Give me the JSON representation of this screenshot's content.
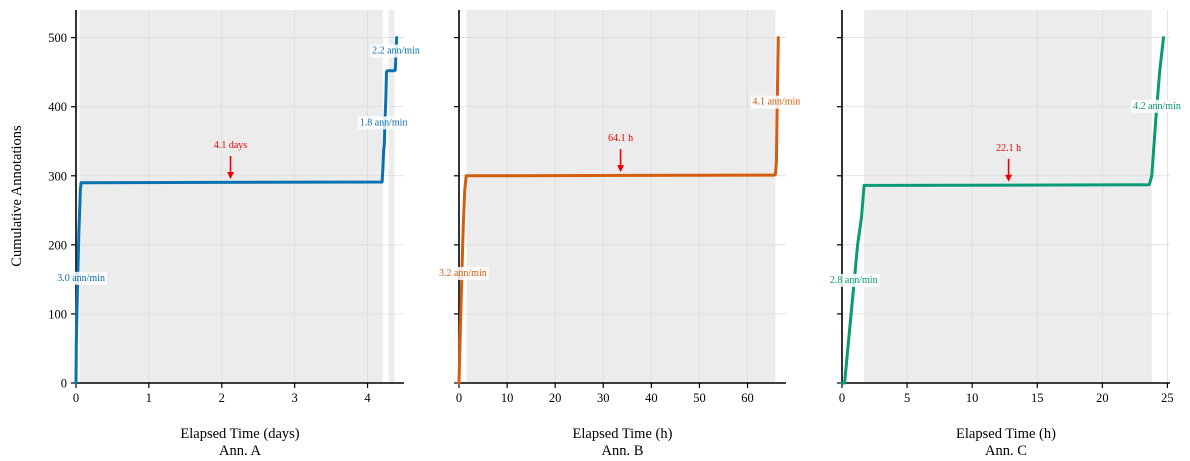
{
  "colors": {
    "gap_shade": "#ececec",
    "grid": "#d9d9d9",
    "arrow": "#ee0000"
  },
  "chart_data": {
    "type": "line",
    "ylabel": "Cumulative Annotations",
    "ylim": [
      0,
      540
    ],
    "yticks": [
      0,
      100,
      200,
      300,
      400,
      500
    ],
    "grid": true,
    "panels": [
      {
        "name": "Ann. A",
        "xlabel": "Elapsed Time (days)",
        "color": "#0a72b0",
        "xlim": [
          0,
          4.5
        ],
        "xticks": [
          0,
          1,
          2,
          3,
          4
        ],
        "shaded_ranges": [
          [
            0.05,
            4.21
          ],
          [
            4.29,
            4.37
          ]
        ],
        "x": [
          0,
          0.004,
          0.02,
          0.04,
          0.06,
          0.07,
          4.18,
          4.2,
          4.21,
          4.22,
          4.23,
          4.24,
          4.25,
          4.26,
          4.27,
          4.29,
          4.3,
          4.33,
          4.36,
          4.38,
          4.39,
          4.4
        ],
        "y": [
          0,
          60,
          140,
          220,
          280,
          290,
          291,
          291,
          310,
          336,
          345,
          380,
          410,
          450,
          452,
          452,
          452,
          452,
          452,
          453,
          480,
          500
        ],
        "annotations": [
          {
            "text": "3.0 ann/min",
            "x": 0.07,
            "y": 153
          },
          {
            "text": "1.8 ann/min",
            "x": 4.22,
            "y": 378
          },
          {
            "text": "2.2 ann/min",
            "x": 4.39,
            "y": 482
          }
        ],
        "gap": {
          "text": "4.1 days",
          "x": 2.12,
          "y": 291
        }
      },
      {
        "name": "Ann. B",
        "xlabel": "Elapsed Time (h)",
        "color": "#d55e0e",
        "xlim": [
          0,
          68
        ],
        "xticks": [
          0,
          10,
          20,
          30,
          40,
          50,
          60
        ],
        "shaded_ranges": [
          [
            1.6,
            65.8
          ]
        ],
        "x": [
          0,
          0.3,
          0.6,
          0.9,
          1.2,
          1.5,
          65.6,
          65.8,
          66.0,
          66.2,
          66.4
        ],
        "y": [
          0,
          80,
          160,
          230,
          280,
          300,
          301,
          302,
          320,
          410,
          500
        ],
        "annotations": [
          {
            "text": "3.2 ann/min",
            "x": 0.8,
            "y": 160
          },
          {
            "text": "4.1 ann/min",
            "x": 66.0,
            "y": 408
          }
        ],
        "gap": {
          "text": "64.1 h",
          "x": 33.6,
          "y": 301
        }
      },
      {
        "name": "Ann. C",
        "xlabel": "Elapsed Time (h)",
        "color": "#0a9a74",
        "xlim": [
          0,
          25.2
        ],
        "xticks": [
          0,
          5,
          10,
          15,
          20,
          25
        ],
        "shaded_ranges": [
          [
            1.7,
            23.8
          ]
        ],
        "x": [
          0,
          0.2,
          0.4,
          0.6,
          0.9,
          1.2,
          1.5,
          1.7,
          23.6,
          23.8,
          24.1,
          24.4,
          24.7
        ],
        "y": [
          0,
          0,
          40,
          80,
          140,
          200,
          240,
          286,
          287,
          300,
          380,
          450,
          500
        ],
        "annotations": [
          {
            "text": "2.8 ann/min",
            "x": 0.9,
            "y": 150
          },
          {
            "text": "4.2 ann/min",
            "x": 24.2,
            "y": 402
          }
        ],
        "gap": {
          "text": "22.1 h",
          "x": 12.8,
          "y": 287
        }
      }
    ]
  }
}
